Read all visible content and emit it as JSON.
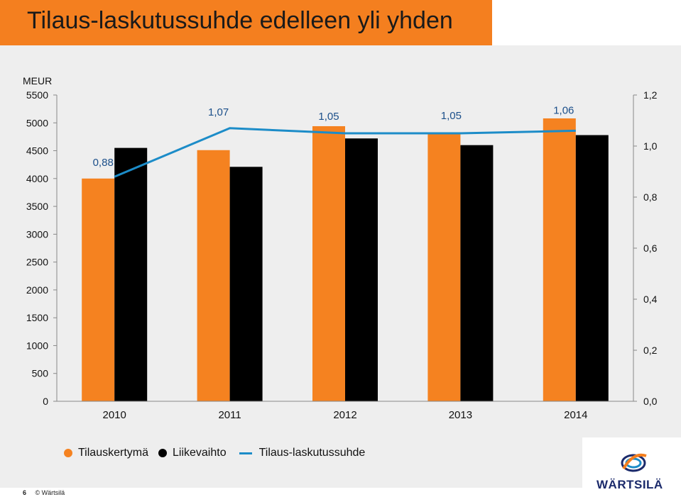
{
  "header": {
    "title": "Tilaus-laskutussuhde edelleen yli yhden"
  },
  "chart_data": {
    "type": "bar",
    "categories": [
      "2010",
      "2011",
      "2012",
      "2013",
      "2014"
    ],
    "series": [
      {
        "name": "Tilauskertymä",
        "type": "bar",
        "color": "#f58220",
        "values": [
          4000,
          4510,
          4940,
          4800,
          5080
        ]
      },
      {
        "name": "Liikevaihto",
        "type": "bar",
        "color": "#000000",
        "values": [
          4550,
          4210,
          4720,
          4600,
          4780
        ]
      },
      {
        "name": "Tilaus-laskutussuhde",
        "type": "line",
        "axis": "right",
        "color": "#1c8cc8",
        "values": [
          0.88,
          1.07,
          1.05,
          1.05,
          1.06
        ],
        "labels": [
          "0,88",
          "1,07",
          "1,05",
          "1,05",
          "1,06"
        ]
      }
    ],
    "y_left": {
      "label": "MEUR",
      "ylim": [
        0,
        5500
      ],
      "ticks": [
        "0",
        "500",
        "1000",
        "1500",
        "2000",
        "2500",
        "3000",
        "3500",
        "4000",
        "4500",
        "5000",
        "5500"
      ]
    },
    "y_right": {
      "ylim": [
        0,
        1.2
      ],
      "ticks": [
        "0,0",
        "0,2",
        "0,4",
        "0,6",
        "0,8",
        "1,0",
        "1,2"
      ]
    },
    "grid": false,
    "legend_position": "bottom"
  },
  "legend": {
    "items": [
      {
        "label": "Tilauskertymä",
        "color": "#f58220"
      },
      {
        "label": "Liikevaihto",
        "color": "#000000"
      },
      {
        "label": "Tilaus-laskutussuhde",
        "color": "#1c8cc8"
      }
    ]
  },
  "footer": {
    "page": "6",
    "copyright": "© Wärtsilä"
  },
  "logo": {
    "text": "WÄRTSILÄ"
  }
}
